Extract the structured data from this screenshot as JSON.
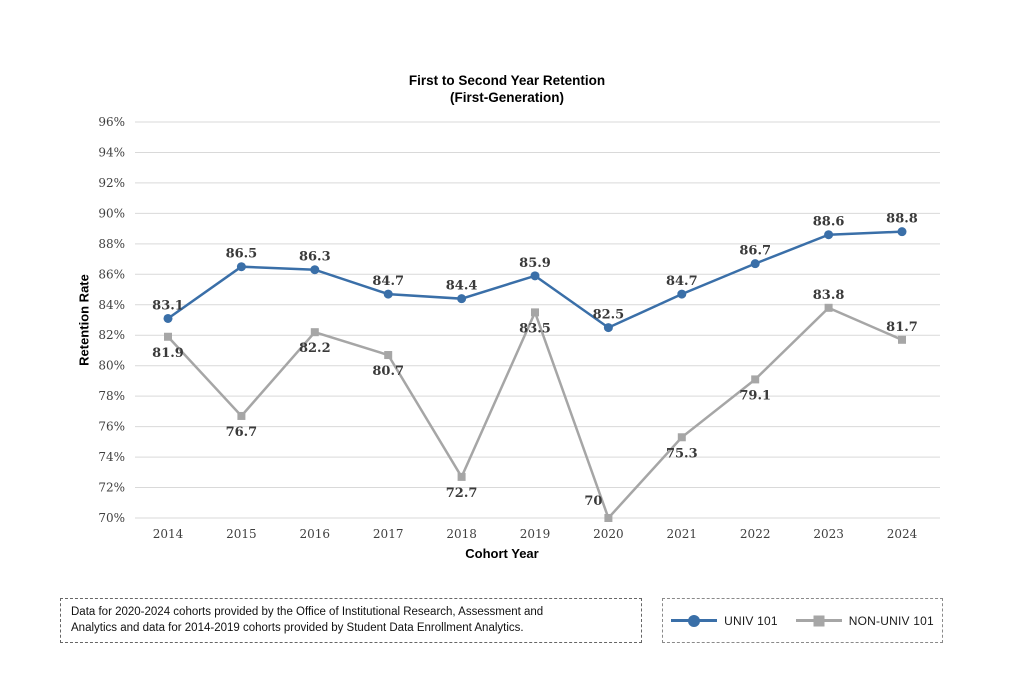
{
  "chart": {
    "title_line1": "First to Second Year Retention",
    "title_line2": "(First-Generation)",
    "ylabel": "Retention Rate",
    "xlabel": "Cohort Year"
  },
  "chart_data": {
    "type": "line",
    "title": "First to Second Year Retention (First-Generation)",
    "xlabel": "Cohort Year",
    "ylabel": "Retention Rate",
    "ylim": [
      70,
      96
    ],
    "ytick_step": 2,
    "ytick_suffix": "%",
    "grid": "horizontal",
    "grid_color": "#d9d9d9",
    "legend_position": "bottom-right",
    "categories": [
      "2014",
      "2015",
      "2016",
      "2017",
      "2018",
      "2019",
      "2020",
      "2021",
      "2022",
      "2023",
      "2024"
    ],
    "series": [
      {
        "name": "UNIV 101",
        "color": "#3a6fa8",
        "marker": "circle",
        "values": [
          83.1,
          86.5,
          86.3,
          84.7,
          84.4,
          85.9,
          82.5,
          84.7,
          86.7,
          88.6,
          88.8
        ],
        "label_side": [
          "above",
          "above",
          "above",
          "above",
          "above",
          "above",
          "above",
          "above",
          "above",
          "above",
          "above"
        ]
      },
      {
        "name": "NON-UNIV 101",
        "color": "#a6a6a6",
        "marker": "square",
        "values": [
          81.9,
          76.7,
          82.2,
          80.7,
          72.7,
          83.5,
          70,
          75.3,
          79.1,
          83.8,
          81.7
        ],
        "label_side": [
          "below",
          "below",
          "below",
          "below",
          "below",
          "below",
          "above-left",
          "below",
          "below",
          "above",
          "above"
        ]
      }
    ]
  },
  "footnote": {
    "text": "Data for 2020-2024 cohorts provided by the Office of Institutional Research, Assessment and Analytics and data for 2014-2019 cohorts provided by Student Data Enrollment Analytics."
  }
}
